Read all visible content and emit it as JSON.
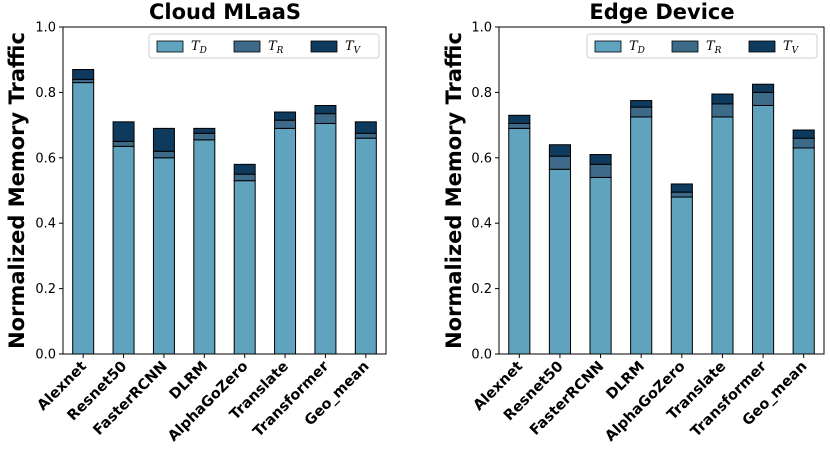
{
  "chart_data": [
    {
      "type": "bar",
      "stacked": true,
      "title": "Cloud MLaaS",
      "ylabel": "Normalized Memory Traffic",
      "xlabel": "",
      "ylim": [
        0,
        1.0
      ],
      "yticks": [
        "0.0",
        "0.2",
        "0.4",
        "0.6",
        "0.8",
        "1.0"
      ],
      "grid": false,
      "legend_position": "top-right",
      "categories": [
        "Alexnet",
        "Resnet50",
        "FasterRCNN",
        "DLRM",
        "AlphaGoZero",
        "Translate",
        "Transformer",
        "Geo_mean"
      ],
      "series": [
        {
          "name": "T_D",
          "label_base": "T",
          "label_sub": "D",
          "color": "#5fa3be",
          "values": [
            0.83,
            0.635,
            0.6,
            0.655,
            0.53,
            0.69,
            0.705,
            0.66
          ]
        },
        {
          "name": "T_R",
          "label_base": "T",
          "label_sub": "R",
          "color": "#3e6a8a",
          "values": [
            0.01,
            0.015,
            0.02,
            0.02,
            0.02,
            0.025,
            0.03,
            0.015
          ]
        },
        {
          "name": "T_V",
          "label_base": "T",
          "label_sub": "V",
          "color": "#0e3a5e",
          "values": [
            0.03,
            0.06,
            0.07,
            0.015,
            0.03,
            0.025,
            0.025,
            0.035
          ]
        }
      ]
    },
    {
      "type": "bar",
      "stacked": true,
      "title": "Edge Device",
      "ylabel": "Normalized Memory Traffic",
      "xlabel": "",
      "ylim": [
        0,
        1.0
      ],
      "yticks": [
        "0.0",
        "0.2",
        "0.4",
        "0.6",
        "0.8",
        "1.0"
      ],
      "grid": false,
      "legend_position": "top-right",
      "categories": [
        "Alexnet",
        "Resnet50",
        "FasterRCNN",
        "DLRM",
        "AlphaGoZero",
        "Translate",
        "Transformer",
        "Geo_mean"
      ],
      "series": [
        {
          "name": "T_D",
          "label_base": "T",
          "label_sub": "D",
          "color": "#5fa3be",
          "values": [
            0.69,
            0.565,
            0.54,
            0.725,
            0.48,
            0.725,
            0.76,
            0.63
          ]
        },
        {
          "name": "T_R",
          "label_base": "T",
          "label_sub": "R",
          "color": "#3e6a8a",
          "values": [
            0.015,
            0.04,
            0.04,
            0.03,
            0.015,
            0.04,
            0.04,
            0.03
          ]
        },
        {
          "name": "T_V",
          "label_base": "T",
          "label_sub": "V",
          "color": "#0e3a5e",
          "values": [
            0.025,
            0.035,
            0.03,
            0.02,
            0.025,
            0.03,
            0.025,
            0.025
          ]
        }
      ]
    }
  ]
}
